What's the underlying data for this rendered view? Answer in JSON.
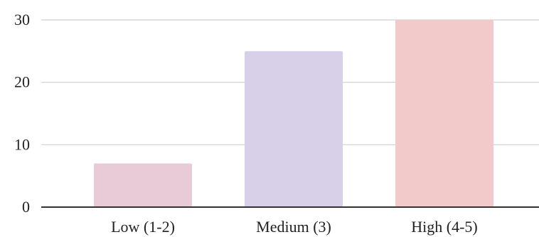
{
  "chart_data": {
    "type": "bar",
    "categories": [
      "Low (1-2)",
      "Medium (3)",
      "High (4-5)"
    ],
    "values": [
      7,
      25,
      30
    ],
    "colors": [
      "#e8cbd7",
      "#d8d0e8",
      "#f2caca"
    ],
    "ylim": [
      0,
      30
    ],
    "yticks": [
      0,
      10,
      20,
      30
    ],
    "title": "",
    "xlabel": "",
    "ylabel": "",
    "grid": true,
    "grid_color": "#cfcfcf",
    "axis_color": "#333333"
  }
}
